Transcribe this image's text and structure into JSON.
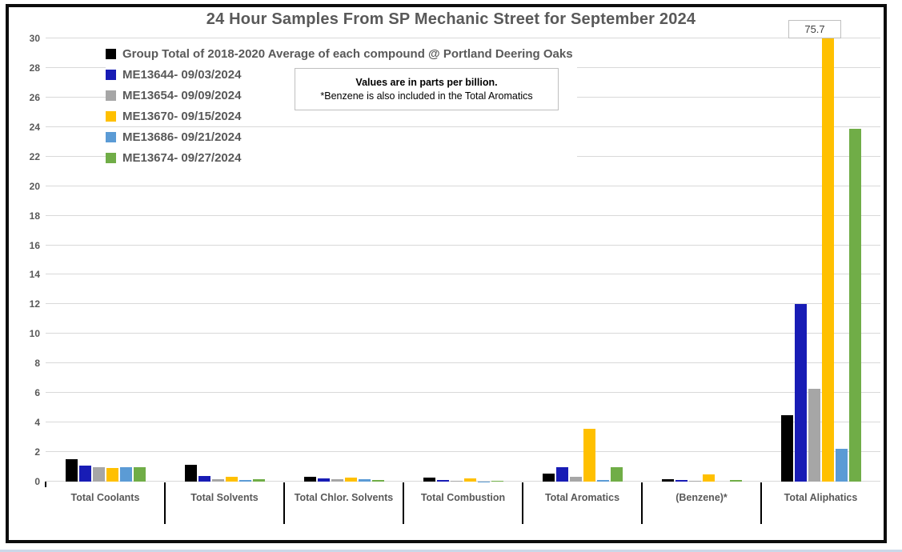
{
  "chart_data": {
    "type": "bar",
    "title": "24 Hour Samples From SP Mechanic Street for September 2024",
    "units_note": {
      "line1": "Values are in parts per billion.",
      "line2": "*Benzene is also included in the Total Aromatics"
    },
    "categories": [
      "Total Coolants",
      "Total Solvents",
      "Total Chlor. Solvents",
      "Total Combustion",
      "Total Aromatics",
      "(Benzene)*",
      "Total Aliphatics"
    ],
    "series": [
      {
        "name": "Group Total of 2018-2020 Average of each compound @ Portland Deering Oaks",
        "color": "#000000",
        "values": [
          1.5,
          1.15,
          0.35,
          0.25,
          0.55,
          0.15,
          4.5
        ]
      },
      {
        "name": "ME13644- 09/03/2024",
        "color": "#181CB5",
        "values": [
          1.1,
          0.4,
          0.2,
          0.1,
          0.95,
          0.1,
          12.0
        ]
      },
      {
        "name": "ME13654- 09/09/2024",
        "color": "#A6A6A6",
        "values": [
          1.0,
          0.15,
          0.15,
          0.03,
          0.35,
          0.05,
          6.3
        ]
      },
      {
        "name": "ME13670- 09/15/2024",
        "color": "#FFC000",
        "values": [
          0.9,
          0.35,
          0.25,
          0.2,
          3.55,
          0.5,
          75.7
        ]
      },
      {
        "name": "ME13686- 09/21/2024",
        "color": "#5B9BD5",
        "values": [
          1.0,
          0.12,
          0.15,
          0.02,
          0.12,
          0.0,
          2.2
        ]
      },
      {
        "name": "ME13674- 09/27/2024",
        "color": "#70AD47",
        "values": [
          1.0,
          0.18,
          0.12,
          0.08,
          0.95,
          0.1,
          23.9
        ]
      }
    ],
    "ylim": [
      0,
      30
    ],
    "ytick_step": 2,
    "grid": true,
    "legend_position": "top-left",
    "annotation": {
      "text": "75.7",
      "series": "ME13670- 09/15/2024",
      "category": "Total Aliphatics",
      "note": "bar clipped at axis max 30"
    },
    "colors": {
      "grid": "#D9D9D9",
      "axis_text": "#595959",
      "title_text": "#595959",
      "frame_border": "#0D0D0D"
    }
  }
}
